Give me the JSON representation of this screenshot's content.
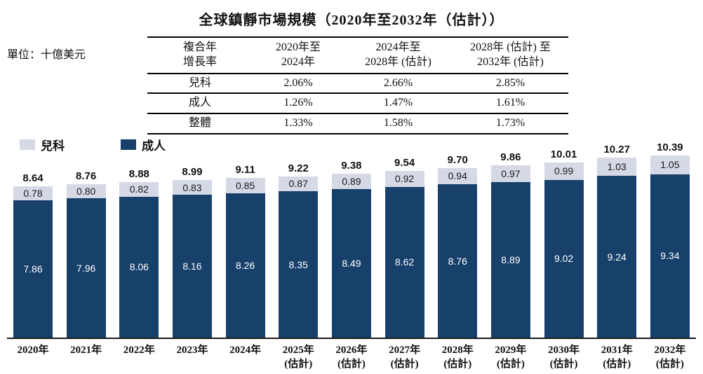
{
  "title": "全球鎮靜市場規模（2020年至2032年（估計））",
  "unit_label": "單位：十億美元",
  "cagr_table": {
    "headers": [
      "複合年\n增長率",
      "2020年至\n2024年",
      "2024年至\n2028年 (估計)",
      "2028年 (估計) 至\n2032年 (估計)"
    ],
    "rows": [
      {
        "label": "兒科",
        "values": [
          "2.06%",
          "2.66%",
          "2.85%"
        ]
      },
      {
        "label": "成人",
        "values": [
          "1.26%",
          "1.47%",
          "1.61%"
        ]
      },
      {
        "label": "整體",
        "values": [
          "1.33%",
          "1.58%",
          "1.73%"
        ]
      }
    ]
  },
  "legend": {
    "items": [
      {
        "label": "兒科",
        "color": "#D5D9E5"
      },
      {
        "label": "成人",
        "color": "#17406B"
      }
    ]
  },
  "colors": {
    "pediatric": "#D5D9E5",
    "adult": "#17406B",
    "axis": "#1a1a1a",
    "total_label": "#111111"
  },
  "chart_data": {
    "type": "bar",
    "stacked": true,
    "title": "全球鎮靜市場規模（2020年至2032年（估計））",
    "ylabel": "單位：十億美元 (十億美元)",
    "grid": false,
    "legend_position": "top-left",
    "ylim": [
      0,
      10.39
    ],
    "categories": [
      "2020年",
      "2021年",
      "2022年",
      "2023年",
      "2024年",
      "2025年 (估計)",
      "2026年 (估計)",
      "2027年 (估計)",
      "2028年 (估計)",
      "2029年 (估計)",
      "2030年 (估計)",
      "2031年 (估計)",
      "2032年 (估計)"
    ],
    "series": [
      {
        "name": "兒科",
        "color": "#D5D9E5",
        "values": [
          "0.78",
          "0.80",
          "0.82",
          "0.83",
          "0.85",
          "0.87",
          "0.89",
          "0.92",
          "0.94",
          "0.97",
          "0.99",
          "1.03",
          "1.05"
        ]
      },
      {
        "name": "成人",
        "color": "#17406B",
        "values": [
          "7.86",
          "7.96",
          "8.06",
          "8.16",
          "8.26",
          "8.35",
          "8.49",
          "8.62",
          "8.76",
          "8.89",
          "9.02",
          "9.24",
          "9.34"
        ]
      }
    ],
    "totals": [
      "8.64",
      "8.76",
      "8.88",
      "8.99",
      "9.11",
      "9.22",
      "9.38",
      "9.54",
      "9.70",
      "9.86",
      "10.01",
      "10.27",
      "10.39"
    ]
  }
}
